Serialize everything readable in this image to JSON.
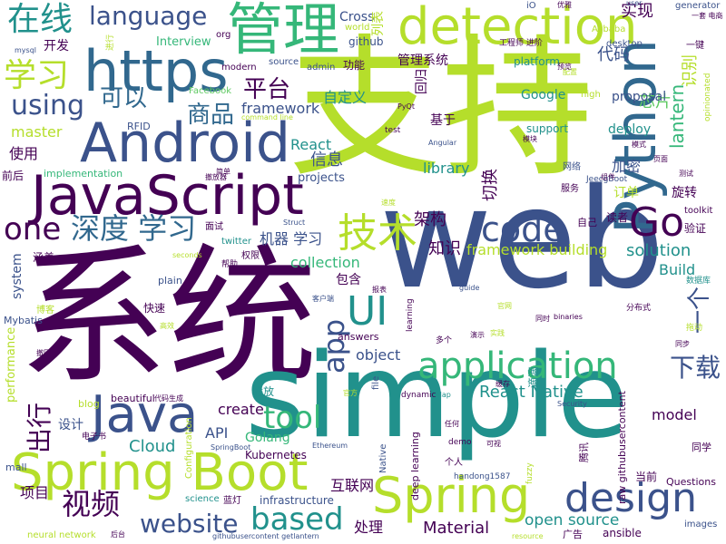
{
  "palette": {
    "dark_purple": "#440154",
    "indigo": "#3b528b",
    "blue": "#31688e",
    "teal": "#21918c",
    "green": "#35b779",
    "light_green": "#5ec962",
    "lime": "#b5de2b",
    "yellow_green": "#d8e219"
  },
  "words": [
    {
      "text": "支持",
      "color": "#b5de2b"
    },
    {
      "text": "系统",
      "color": "#440154"
    },
    {
      "text": "web",
      "color": "#3b528b"
    },
    {
      "text": "simple",
      "color": "#21918c"
    },
    {
      "text": "JavaScript",
      "color": "#440154"
    },
    {
      "text": "Android",
      "color": "#3b528b"
    },
    {
      "text": "https",
      "color": "#31688e"
    },
    {
      "text": "Python",
      "color": "#31688e"
    },
    {
      "text": "Spring Boot",
      "color": "#b5de2b"
    },
    {
      "text": "detection",
      "color": "#b5de2b"
    },
    {
      "text": "管理",
      "color": "#35b779"
    },
    {
      "text": "Java",
      "color": "#3b528b"
    },
    {
      "text": "Spring",
      "color": "#b5de2b"
    },
    {
      "text": "design",
      "color": "#3b528b"
    },
    {
      "text": "application",
      "color": "#35b779"
    },
    {
      "text": "code",
      "color": "#3b528b"
    },
    {
      "text": "Go",
      "color": "#440154"
    },
    {
      "text": "UI",
      "color": "#21918c"
    },
    {
      "text": "技术",
      "color": "#b5de2b"
    },
    {
      "text": "language",
      "color": "#3b528b"
    },
    {
      "text": "在线",
      "color": "#21918c"
    },
    {
      "text": "学习",
      "color": "#b5de2b"
    },
    {
      "text": "深度 学习",
      "color": "#31688e"
    },
    {
      "text": "one",
      "color": "#440154"
    },
    {
      "text": "using",
      "color": "#3b528b"
    },
    {
      "text": "可以",
      "color": "#31688e"
    },
    {
      "text": "master",
      "color": "#b5de2b"
    },
    {
      "text": "视频",
      "color": "#440154"
    },
    {
      "text": "website",
      "color": "#3b528b"
    },
    {
      "text": "based",
      "color": "#21918c"
    },
    {
      "text": "tool",
      "color": "#35b779"
    },
    {
      "text": "app",
      "color": "#3b528b"
    },
    {
      "text": "下载",
      "color": "#3b528b"
    },
    {
      "text": "一个",
      "color": "#3b528b"
    },
    {
      "text": "出行",
      "color": "#440154"
    },
    {
      "text": "React Native",
      "color": "#21918c"
    },
    {
      "text": "open source",
      "color": "#21918c"
    },
    {
      "text": "Material",
      "color": "#440154"
    },
    {
      "text": "平台",
      "color": "#440154"
    },
    {
      "text": "商品",
      "color": "#31688e"
    },
    {
      "text": "framework",
      "color": "#3b528b"
    },
    {
      "text": "自定义",
      "color": "#21918c"
    },
    {
      "text": "Cross",
      "color": "#3b528b"
    },
    {
      "text": "实现",
      "color": "#440154"
    },
    {
      "text": "代码",
      "color": "#3b528b"
    },
    {
      "text": "芯片",
      "color": "#5ec962"
    },
    {
      "text": "识别",
      "color": "#b5de2b"
    },
    {
      "text": "lantern",
      "color": "#35b779"
    },
    {
      "text": "library",
      "color": "#21918c"
    },
    {
      "text": "加密",
      "color": "#3b528b"
    },
    {
      "text": "React",
      "color": "#21918c"
    },
    {
      "text": "信息",
      "color": "#3b528b"
    },
    {
      "text": "projects",
      "color": "#3b528b"
    },
    {
      "text": "切换",
      "color": "#440154"
    },
    {
      "text": "架构",
      "color": "#440154"
    },
    {
      "text": "机器 学习",
      "color": "#3b528b"
    },
    {
      "text": "知识",
      "color": "#440154"
    },
    {
      "text": "framework building",
      "color": "#b5de2b"
    },
    {
      "text": "solution",
      "color": "#21918c"
    },
    {
      "text": "Build",
      "color": "#21918c"
    },
    {
      "text": "collection",
      "color": "#35b779"
    },
    {
      "text": "包含",
      "color": "#440154"
    },
    {
      "text": "object",
      "color": "#3b528b"
    },
    {
      "text": "model",
      "color": "#440154"
    },
    {
      "text": "create",
      "color": "#440154"
    },
    {
      "text": "API",
      "color": "#3b528b"
    },
    {
      "text": "Cloud",
      "color": "#21918c"
    },
    {
      "text": "Golang",
      "color": "#35b779"
    },
    {
      "text": "Kubernetes",
      "color": "#440154"
    },
    {
      "text": "互联网",
      "color": "#440154"
    },
    {
      "text": "infrastructure",
      "color": "#3b528b"
    },
    {
      "text": "处理",
      "color": "#440154"
    },
    {
      "text": "项目",
      "color": "#440154"
    },
    {
      "text": "设计",
      "color": "#3b528b"
    },
    {
      "text": "performance",
      "color": "#b5de2b"
    },
    {
      "text": "使用",
      "color": "#440154"
    },
    {
      "text": "system",
      "color": "#3b528b"
    },
    {
      "text": "开发",
      "color": "#440154"
    },
    {
      "text": "Interview",
      "color": "#35b779"
    },
    {
      "text": "管理系统",
      "color": "#440154"
    },
    {
      "text": "功能",
      "color": "#440154"
    },
    {
      "text": "github",
      "color": "#3b528b"
    },
    {
      "text": "platform",
      "color": "#21918c"
    },
    {
      "text": "Google",
      "color": "#21918c"
    },
    {
      "text": "proposal",
      "color": "#3b528b"
    },
    {
      "text": "support",
      "color": "#21918c"
    },
    {
      "text": "deploy",
      "color": "#21918c"
    },
    {
      "text": "订单",
      "color": "#b5de2b"
    },
    {
      "text": "旋转",
      "color": "#440154"
    },
    {
      "text": "验证",
      "color": "#440154"
    },
    {
      "text": "toolkit",
      "color": "#440154"
    },
    {
      "text": "读者",
      "color": "#440154"
    },
    {
      "text": "基于",
      "color": "#440154"
    },
    {
      "text": "回归",
      "color": "#440154"
    },
    {
      "text": "前后",
      "color": "#440154"
    },
    {
      "text": "implementation",
      "color": "#35b779"
    },
    {
      "text": "Facebook",
      "color": "#5ec962"
    },
    {
      "text": "RFID",
      "color": "#3b528b"
    },
    {
      "text": "modern",
      "color": "#440154"
    },
    {
      "text": "source",
      "color": "#3b528b"
    },
    {
      "text": "admin",
      "color": "#3b528b"
    },
    {
      "text": "org",
      "color": "#440154"
    },
    {
      "text": "mysql",
      "color": "#3b528b"
    },
    {
      "text": "world",
      "color": "#b5de2b"
    },
    {
      "text": "Alibaba",
      "color": "#b5de2b"
    },
    {
      "text": "generator",
      "color": "#3b528b"
    },
    {
      "text": "desktop",
      "color": "#3b528b"
    },
    {
      "text": "iO",
      "color": "#3b528b"
    },
    {
      "text": "user",
      "color": "#3b528b"
    },
    {
      "text": "工程师 进阶",
      "color": "#440154"
    },
    {
      "text": "进行",
      "color": "#b5de2b"
    },
    {
      "text": "列表",
      "color": "#b5de2b"
    },
    {
      "text": "面试",
      "color": "#440154"
    },
    {
      "text": "twitter",
      "color": "#21918c"
    },
    {
      "text": "权限",
      "color": "#440154"
    },
    {
      "text": "帮助",
      "color": "#440154"
    },
    {
      "text": "涵盖",
      "color": "#440154"
    },
    {
      "text": "博客",
      "color": "#b5de2b"
    },
    {
      "text": "Mybatis",
      "color": "#3b528b"
    },
    {
      "text": "plain",
      "color": "#3b528b"
    },
    {
      "text": "快速",
      "color": "#440154"
    },
    {
      "text": "answers",
      "color": "#440154"
    },
    {
      "text": "播放",
      "color": "#21918c"
    },
    {
      "text": "file",
      "color": "#3b528b"
    },
    {
      "text": "dynamic",
      "color": "#440154"
    },
    {
      "text": "deep learning",
      "color": "#440154"
    },
    {
      "text": "raw githubusercontent",
      "color": "#440154"
    },
    {
      "text": "滴滴",
      "color": "#21918c"
    },
    {
      "text": "腾讯",
      "color": "#440154"
    },
    {
      "text": "同学",
      "color": "#440154"
    },
    {
      "text": "当前",
      "color": "#440154"
    },
    {
      "text": "Questions",
      "color": "#440154"
    },
    {
      "text": "images",
      "color": "#3b528b"
    },
    {
      "text": "ansible",
      "color": "#440154"
    },
    {
      "text": "广告",
      "color": "#440154"
    },
    {
      "text": "mall",
      "color": "#3b528b"
    },
    {
      "text": "blog",
      "color": "#b5de2b"
    },
    {
      "text": "beautiful",
      "color": "#440154"
    },
    {
      "text": "science",
      "color": "#21918c"
    },
    {
      "text": "neural network",
      "color": "#b5de2b"
    },
    {
      "text": "githubusercontent getlantern",
      "color": "#3b528b"
    },
    {
      "text": "Configuration",
      "color": "#b5de2b"
    },
    {
      "text": "蓝灯",
      "color": "#440154"
    },
    {
      "text": "Native",
      "color": "#3b528b"
    },
    {
      "text": "demo",
      "color": "#440154"
    },
    {
      "text": "个人",
      "color": "#440154"
    },
    {
      "text": "fuzzy",
      "color": "#b5de2b"
    },
    {
      "text": "resource",
      "color": "#b5de2b"
    },
    {
      "text": "handong1587",
      "color": "#3b528b"
    },
    {
      "text": "learning",
      "color": "#440154"
    },
    {
      "text": "多个",
      "color": "#440154"
    },
    {
      "text": "Struct",
      "color": "#3b528b"
    },
    {
      "text": "JeecgBoot",
      "color": "#3b528b"
    },
    {
      "text": "网络",
      "color": "#3b528b"
    },
    {
      "text": "服务",
      "color": "#440154"
    },
    {
      "text": "速度",
      "color": "#b5de2b"
    },
    {
      "text": "自己",
      "color": "#440154"
    },
    {
      "text": "分布式",
      "color": "#440154"
    },
    {
      "text": "数据库",
      "color": "#21918c"
    },
    {
      "text": "Angular",
      "color": "#3b528b"
    },
    {
      "text": "test",
      "color": "#440154"
    },
    {
      "text": "high",
      "color": "#b5de2b"
    },
    {
      "text": "电子书",
      "color": "#440154"
    },
    {
      "text": "SpringBoot",
      "color": "#3b528b"
    },
    {
      "text": "Map",
      "color": "#21918c"
    },
    {
      "text": "Ethereum",
      "color": "#3b528b"
    },
    {
      "text": "binaries",
      "color": "#440154"
    },
    {
      "text": "同时",
      "color": "#440154"
    },
    {
      "text": "拖动",
      "color": "#b5de2b"
    },
    {
      "text": "同步",
      "color": "#440154"
    },
    {
      "text": "guide",
      "color": "#3b528b"
    },
    {
      "text": "seconds",
      "color": "#b5de2b"
    },
    {
      "text": "客户端",
      "color": "#3b528b"
    },
    {
      "text": "opinionated",
      "color": "#b5de2b"
    },
    {
      "text": "一键",
      "color": "#440154"
    },
    {
      "text": "优雅",
      "color": "#440154"
    },
    {
      "text": "一套 电商",
      "color": "#440154"
    },
    {
      "text": "配置",
      "color": "#b5de2b"
    },
    {
      "text": "预览",
      "color": "#440154"
    },
    {
      "text": "PyQt",
      "color": "#440154"
    },
    {
      "text": "模块",
      "color": "#440154"
    },
    {
      "text": "command line",
      "color": "#b5de2b"
    },
    {
      "text": "任何",
      "color": "#440154"
    },
    {
      "text": "代码生成",
      "color": "#440154"
    },
    {
      "text": "缓存",
      "color": "#440154"
    },
    {
      "text": "Security",
      "color": "#3b528b"
    },
    {
      "text": "官方",
      "color": "#b5de2b"
    },
    {
      "text": "高效",
      "color": "#b5de2b"
    },
    {
      "text": "后台",
      "color": "#440154"
    },
    {
      "text": "报表",
      "color": "#440154"
    },
    {
      "text": "简单",
      "color": "#440154"
    },
    {
      "text": "测试",
      "color": "#440154"
    },
    {
      "text": "模式",
      "color": "#440154"
    },
    {
      "text": "实践",
      "color": "#b5de2b"
    },
    {
      "text": "可视",
      "color": "#440154"
    },
    {
      "text": "撤回",
      "color": "#440154"
    },
    {
      "text": "撤放器",
      "color": "#440154"
    },
    {
      "text": "组件",
      "color": "#440154"
    },
    {
      "text": "页面",
      "color": "#440154"
    },
    {
      "text": "演示",
      "color": "#440154"
    },
    {
      "text": "官网",
      "color": "#b5de2b"
    }
  ]
}
